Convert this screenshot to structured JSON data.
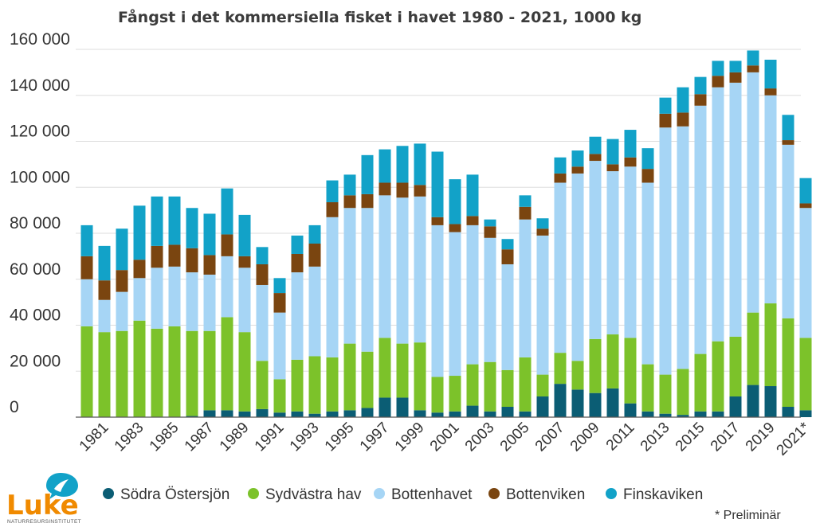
{
  "chart_data": {
    "type": "bar",
    "stacked": true,
    "title": "Fångst i det kommersiella fisket i havet 1980 - 2021, 1000 kg",
    "xlabel": "",
    "ylabel": "",
    "ylim": [
      0,
      160000
    ],
    "ytick_values": [
      0,
      20000,
      40000,
      60000,
      80000,
      100000,
      120000,
      140000,
      160000
    ],
    "ytick_labels": [
      "0",
      "20 000",
      "40 000",
      "60 000",
      "80 000",
      "100 000",
      "120 000",
      "140 000",
      "160 000"
    ],
    "grid": true,
    "legend_position": "bottom",
    "categories": [
      "1980",
      "1981",
      "1982",
      "1983",
      "1984",
      "1985",
      "1986",
      "1987",
      "1988",
      "1989",
      "1990",
      "1991",
      "1992",
      "1993",
      "1994",
      "1995",
      "1996",
      "1997",
      "1998",
      "1999",
      "2000",
      "2001",
      "2002",
      "2003",
      "2004",
      "2005",
      "2006",
      "2007",
      "2008",
      "2009",
      "2010",
      "2011",
      "2012",
      "2013",
      "2014",
      "2015",
      "2016",
      "2017",
      "2018",
      "2019",
      "2020",
      "2021*"
    ],
    "x_tick_labels": [
      "1981",
      "1983",
      "1985",
      "1987",
      "1989",
      "1991",
      "1993",
      "1995",
      "1997",
      "1999",
      "2001",
      "2003",
      "2005",
      "2007",
      "2009",
      "2011",
      "2013",
      "2015",
      "2017",
      "2019",
      "2021*"
    ],
    "series": [
      {
        "name": "Södra Östersjön",
        "color": "#0b5d74",
        "values": [
          0,
          0,
          0,
          0,
          0,
          0,
          500,
          3000,
          3000,
          2500,
          3500,
          2000,
          2500,
          1500,
          2500,
          3000,
          4000,
          8500,
          8500,
          3000,
          2000,
          2500,
          5000,
          2500,
          4500,
          2500,
          9000,
          14500,
          12000,
          10500,
          12500,
          6000,
          2500,
          1500,
          1000,
          2500,
          2500,
          9000,
          14000,
          13500,
          4500,
          3000
        ]
      },
      {
        "name": "Sydvästra hav",
        "color": "#7cc22a",
        "values": [
          39500,
          37000,
          37500,
          42000,
          38500,
          39500,
          37000,
          34500,
          40500,
          34500,
          21000,
          14500,
          22500,
          25000,
          23500,
          29000,
          24500,
          26000,
          23500,
          29500,
          15500,
          15500,
          18000,
          21500,
          16000,
          23500,
          9500,
          13500,
          12500,
          23500,
          23500,
          28500,
          20500,
          17000,
          20000,
          25000,
          30500,
          26000,
          31500,
          36000,
          38500,
          31500
        ]
      },
      {
        "name": "Bottenhavet",
        "color": "#a6d5f5",
        "values": [
          20500,
          14000,
          17000,
          18500,
          26500,
          26000,
          25500,
          24500,
          26500,
          28000,
          33000,
          29000,
          38000,
          39000,
          61000,
          59000,
          62500,
          62000,
          63500,
          63500,
          66000,
          62500,
          60500,
          54000,
          46000,
          60000,
          60500,
          74000,
          81500,
          77500,
          71000,
          74500,
          79000,
          107500,
          105500,
          108000,
          110500,
          110500,
          104500,
          90500,
          75500,
          56500
        ]
      },
      {
        "name": "Bottenviken",
        "color": "#7a4510",
        "values": [
          10000,
          8500,
          9500,
          8000,
          9500,
          9500,
          10500,
          8500,
          9500,
          5000,
          9000,
          8500,
          8000,
          10000,
          6500,
          5500,
          6000,
          5500,
          6500,
          5000,
          3500,
          3500,
          4000,
          5000,
          6500,
          5500,
          3000,
          4000,
          3000,
          3000,
          3000,
          4000,
          6000,
          6000,
          6000,
          5000,
          5000,
          4500,
          3000,
          3000,
          2000,
          2000
        ]
      },
      {
        "name": "Finskaviken",
        "color": "#12a2c8",
        "values": [
          13500,
          15000,
          18000,
          23500,
          21500,
          21000,
          17500,
          18000,
          20000,
          18000,
          7500,
          6500,
          8000,
          8000,
          9500,
          9000,
          17000,
          14500,
          16000,
          18000,
          28500,
          19500,
          18000,
          3000,
          4500,
          5000,
          4500,
          7000,
          7000,
          7500,
          11000,
          12000,
          9000,
          7000,
          11000,
          7500,
          6500,
          5000,
          6500,
          12500,
          11000,
          11000
        ]
      }
    ],
    "legend": [
      "Södra Östersjön",
      "Sydvästra hav",
      "Bottenhavet",
      "Bottenviken",
      "Finskaviken"
    ],
    "annotation": "* Preliminär"
  },
  "logo": {
    "word": "Luke",
    "subtitle": "NATURRESURSINSTITUTET"
  }
}
